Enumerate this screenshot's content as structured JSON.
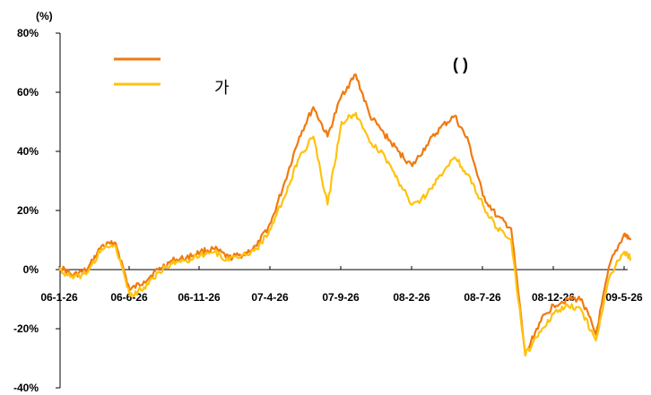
{
  "chart_data": {
    "type": "line",
    "y_unit": "(%)",
    "ylim": [
      -40,
      80
    ],
    "y_ticks": [
      "80%",
      "60%",
      "40%",
      "20%",
      "0%",
      "-20%",
      "-40%"
    ],
    "x_ticks": [
      "06-1-26",
      "06-6-26",
      "06-11-26",
      "07-4-26",
      "07-9-26",
      "08-2-26",
      "08-7-26",
      "08-12-26",
      "09-5-26"
    ],
    "note": "(     )",
    "series": [
      {
        "name": "",
        "color": "#f07a10",
        "x": [
          "06-1-26",
          "06-2-26",
          "06-3-26",
          "06-4-26",
          "06-5-26",
          "06-6-26",
          "06-7-26",
          "06-8-26",
          "06-9-26",
          "06-10-26",
          "06-11-26",
          "06-12-26",
          "07-1-26",
          "07-2-26",
          "07-3-26",
          "07-4-26",
          "07-5-26",
          "07-6-26",
          "07-7-26",
          "07-8-26",
          "07-9-26",
          "07-10-26",
          "07-11-26",
          "07-12-26",
          "08-1-26",
          "08-2-26",
          "08-3-26",
          "08-4-26",
          "08-5-26",
          "08-6-26",
          "08-7-26",
          "08-8-26",
          "08-9-26",
          "08-10-26",
          "08-11-26",
          "08-12-26",
          "09-1-26",
          "09-2-26",
          "09-3-26",
          "09-4-26",
          "09-5-26",
          "09-6-10"
        ],
        "values": [
          1,
          -2,
          0,
          8,
          9,
          -7,
          -4,
          0,
          3,
          4,
          6,
          7,
          4,
          5,
          8,
          16,
          30,
          45,
          55,
          45,
          59,
          66,
          52,
          46,
          40,
          35,
          42,
          48,
          52,
          43,
          25,
          18,
          14,
          -29,
          -18,
          -12,
          -10,
          -10,
          -22,
          2,
          12,
          10
        ]
      },
      {
        "name": "가",
        "color": "#ffc20e",
        "x": [
          "06-1-26",
          "06-2-26",
          "06-3-26",
          "06-4-26",
          "06-5-26",
          "06-6-26",
          "06-7-26",
          "06-8-26",
          "06-9-26",
          "06-10-26",
          "06-11-26",
          "06-12-26",
          "07-1-26",
          "07-2-26",
          "07-3-26",
          "07-4-26",
          "07-5-26",
          "07-6-26",
          "07-7-26",
          "07-8-26",
          "07-9-26",
          "07-10-26",
          "07-11-26",
          "07-12-26",
          "08-1-26",
          "08-2-26",
          "08-3-26",
          "08-4-26",
          "08-5-26",
          "08-6-26",
          "08-7-26",
          "08-8-26",
          "08-9-26",
          "08-10-26",
          "08-11-26",
          "08-12-26",
          "09-1-26",
          "09-2-26",
          "09-3-26",
          "09-4-26",
          "09-5-26",
          "09-6-10"
        ],
        "values": [
          0,
          -3,
          -1,
          7,
          8,
          -9,
          -6,
          -1,
          2,
          3,
          5,
          6,
          3,
          5,
          7,
          14,
          25,
          38,
          45,
          22,
          50,
          53,
          43,
          39,
          30,
          22,
          25,
          32,
          38,
          32,
          22,
          14,
          10,
          -29,
          -21,
          -15,
          -12,
          -14,
          -24,
          -2,
          6,
          4
        ]
      }
    ]
  }
}
